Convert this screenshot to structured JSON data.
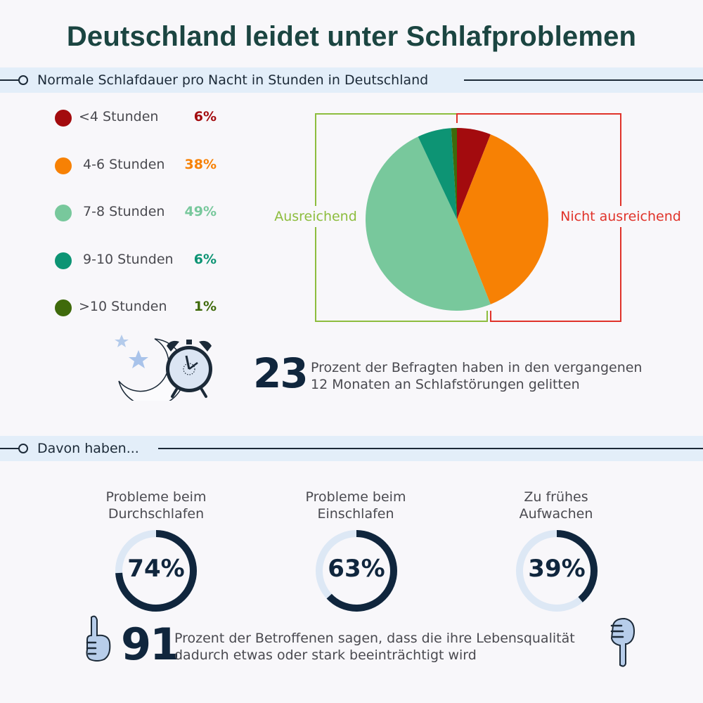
{
  "title": "Deutschland leidet unter Schlafproblemen",
  "section1": {
    "label": "Normale Schlafdauer pro Nacht in Stunden in Deutschland"
  },
  "section2": {
    "label": "Davon haben..."
  },
  "chart_data": [
    {
      "type": "pie",
      "title": "Normale Schlafdauer pro Nacht in Stunden in Deutschland",
      "categories": [
        "<4 Stunden",
        "4-6 Stunden",
        "7-8 Stunden",
        "9-10 Stunden",
        ">10 Stunden"
      ],
      "values": [
        6,
        38,
        49,
        6,
        1
      ],
      "labels": [
        "6%",
        "38%",
        "49%",
        "6%",
        "1%"
      ],
      "colors": [
        "#a30b0e",
        "#f78104",
        "#78c89c",
        "#0d9474",
        "#3f6a0b"
      ],
      "groups": [
        {
          "label": "Ausreichend",
          "color": "#8dbd3e",
          "members": [
            "7-8 Stunden",
            "9-10 Stunden",
            ">10 Stunden"
          ]
        },
        {
          "label": "Nicht ausreichend",
          "color": "#e0332a",
          "members": [
            "<4 Stunden",
            "4-6 Stunden"
          ]
        }
      ],
      "legend_position": "left"
    },
    {
      "type": "donut",
      "title": "Davon haben...",
      "categories": [
        "Probleme beim Durchschlafen",
        "Probleme beim Einschlafen",
        "Zu frühes Aufwachen"
      ],
      "values": [
        74,
        63,
        39
      ],
      "labels": [
        "74%",
        "63%",
        "39%"
      ],
      "ylim": [
        0,
        100
      ]
    }
  ],
  "legend": [
    {
      "label": "<4 Stunden",
      "pct": "6%",
      "color": "#a30b0e"
    },
    {
      "label": "4-6 Stunden",
      "pct": "38%",
      "color": "#f78104"
    },
    {
      "label": "7-8 Stunden",
      "pct": "49%",
      "color": "#78c89c"
    },
    {
      "label": "9-10 Stunden",
      "pct": "6%",
      "color": "#0d9474"
    },
    {
      "label": ">10 Stunden",
      "pct": "1%",
      "color": "#3f6a0b"
    }
  ],
  "pie_groups": {
    "sufficient": {
      "label": "Ausreichend",
      "color": "#8dbd3e"
    },
    "insufficient": {
      "label": "Nicht ausreichend",
      "color": "#e0332a"
    }
  },
  "stat1": {
    "number": "23",
    "line1": "Prozent der Befragten haben in den vergangenen",
    "line2": "12 Monaten an Schlafstörungen gelitten"
  },
  "donuts": [
    {
      "line1": "Probleme beim",
      "line2": "Durchschlafen",
      "value": 74,
      "label": "74%"
    },
    {
      "line1": "Probleme beim",
      "line2": "Einschlafen",
      "value": 63,
      "label": "63%"
    },
    {
      "line1": "Zu frühes",
      "line2": "Aufwachen",
      "value": 39,
      "label": "39%"
    }
  ],
  "stat2": {
    "number": "91",
    "line1": "Prozent der Betroffenen sagen, dass die ihre Lebensqualität",
    "line2": "dadurch etwas oder stark beeinträchtigt wird"
  },
  "colors": {
    "dark_navy": "#10263d",
    "track": "#dde8f5",
    "title": "#1b4541",
    "section_bg": "#e3eef9"
  }
}
